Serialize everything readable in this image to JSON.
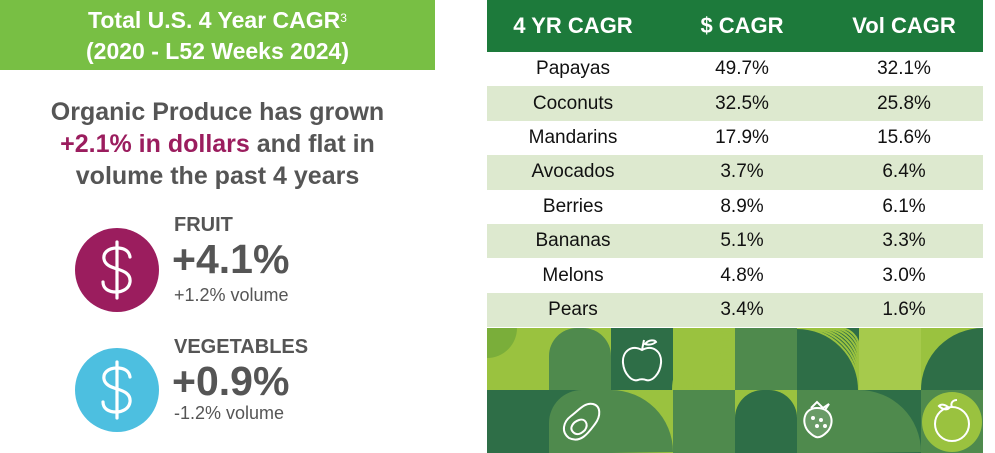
{
  "header": {
    "title_line1": "Total U.S. 4 Year CAGR",
    "title_sup": "3",
    "title_line2": "(2020 - L52 Weeks 2024)"
  },
  "headline": {
    "line1": "Organic Produce has grown",
    "accent": "+2.1% in dollars",
    "line2_rest": " and flat in",
    "line3": "volume the past 4 years"
  },
  "fruit": {
    "label": "FRUIT",
    "pct": "+4.1%",
    "volume": "+1.2% volume",
    "icon": "dollar-icon",
    "color": "#9b1d5e"
  },
  "vegetables": {
    "label": "VEGETABLES",
    "pct": "+0.9%",
    "volume": "-1.2% volume",
    "icon": "dollar-icon",
    "color": "#4dbfe0"
  },
  "table": {
    "headers": [
      "4 YR CAGR",
      "$ CAGR",
      "Vol CAGR"
    ],
    "rows": [
      {
        "item": "Papayas",
        "dollar": "49.7%",
        "vol": "32.1%"
      },
      {
        "item": "Coconuts",
        "dollar": "32.5%",
        "vol": "25.8%"
      },
      {
        "item": "Mandarins",
        "dollar": "17.9%",
        "vol": "15.6%"
      },
      {
        "item": "Avocados",
        "dollar": "3.7%",
        "vol": "6.4%"
      },
      {
        "item": "Berries",
        "dollar": "8.9%",
        "vol": "6.1%"
      },
      {
        "item": "Bananas",
        "dollar": "5.1%",
        "vol": "3.3%"
      },
      {
        "item": "Melons",
        "dollar": "4.8%",
        "vol": "3.0%"
      },
      {
        "item": "Pears",
        "dollar": "3.4%",
        "vol": "1.6%"
      }
    ]
  },
  "colors": {
    "header_green": "#78bf44",
    "table_header": "#1d7a3b",
    "row_alt": "#dde9cf",
    "accent_magenta": "#9b1d5e",
    "accent_blue": "#4dbfe0",
    "mosaic_dark": "#2e6e47",
    "mosaic_mid": "#4f8a4d",
    "mosaic_lime": "#9ac23f"
  },
  "mosaic_icons": [
    "apple-icon",
    "avocado-icon",
    "strawberry-icon",
    "orange-icon"
  ]
}
